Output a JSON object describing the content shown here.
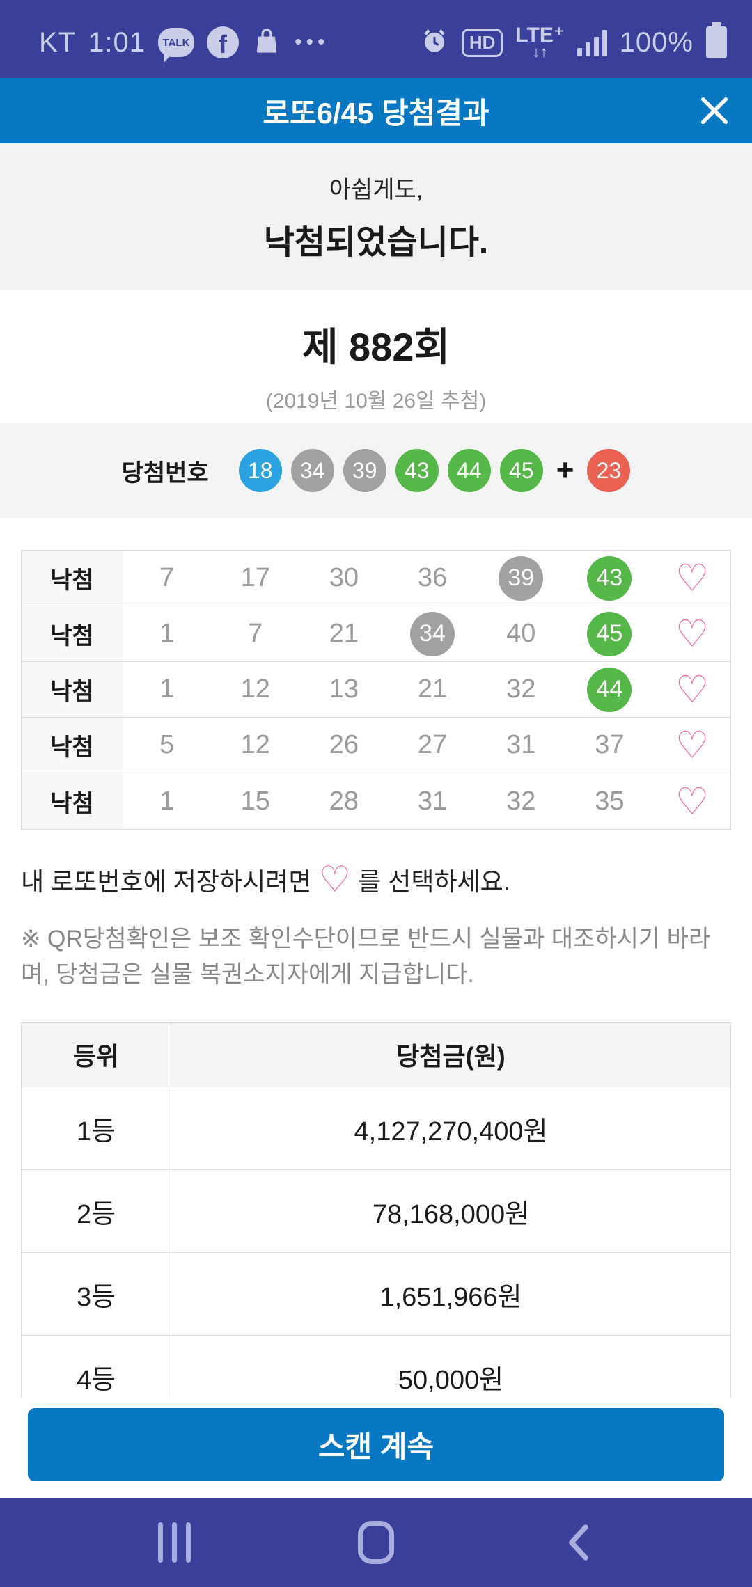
{
  "colors": {
    "system_bar_bg": "#3A3F9A",
    "system_bar_fg": "#C9CDE8",
    "header_bg": "#0878C2",
    "banner_bg": "#F2F2F2",
    "box_bg": "#F4F4F4",
    "ball_blue": "#2BA3E1",
    "ball_gray": "#A1A1A1",
    "ball_green": "#55B748",
    "ball_red": "#EA6352",
    "number_gray": "#9B9B9B",
    "heart_pink": "#F2729B"
  },
  "status_bar": {
    "carrier": "KT",
    "time": "1:01",
    "kakaotalk_label": "TALK",
    "facebook_label": "f",
    "more_dots": "•••",
    "hd_label": "HD",
    "lte_label": "LTE⁺",
    "lte_arrows": "↓↑",
    "battery_percent": "100%"
  },
  "header": {
    "title": "로또6/45 당첨결과"
  },
  "banner": {
    "line1": "아쉽게도,",
    "line2": "낙첨되었습니다."
  },
  "round": {
    "title": "제 882회",
    "date": "(2019년 10월 26일 추첨)"
  },
  "winning": {
    "label": "당첨번호",
    "balls": [
      {
        "value": "18",
        "color": "blue"
      },
      {
        "value": "34",
        "color": "gray"
      },
      {
        "value": "39",
        "color": "gray"
      },
      {
        "value": "43",
        "color": "green"
      },
      {
        "value": "44",
        "color": "green"
      },
      {
        "value": "45",
        "color": "green"
      }
    ],
    "plus": "+",
    "bonus": {
      "value": "23",
      "color": "red"
    }
  },
  "my_games": {
    "status_label": "낙첨",
    "heart": "♡",
    "rows": [
      {
        "numbers": [
          {
            "v": "7"
          },
          {
            "v": "17"
          },
          {
            "v": "30"
          },
          {
            "v": "36"
          },
          {
            "v": "39",
            "ball": "gray"
          },
          {
            "v": "43",
            "ball": "green"
          }
        ]
      },
      {
        "numbers": [
          {
            "v": "1"
          },
          {
            "v": "7"
          },
          {
            "v": "21"
          },
          {
            "v": "34",
            "ball": "gray"
          },
          {
            "v": "40"
          },
          {
            "v": "45",
            "ball": "green"
          }
        ]
      },
      {
        "numbers": [
          {
            "v": "1"
          },
          {
            "v": "12"
          },
          {
            "v": "13"
          },
          {
            "v": "21"
          },
          {
            "v": "32"
          },
          {
            "v": "44",
            "ball": "green"
          }
        ]
      },
      {
        "numbers": [
          {
            "v": "5"
          },
          {
            "v": "12"
          },
          {
            "v": "26"
          },
          {
            "v": "27"
          },
          {
            "v": "31"
          },
          {
            "v": "37"
          }
        ]
      },
      {
        "numbers": [
          {
            "v": "1"
          },
          {
            "v": "15"
          },
          {
            "v": "28"
          },
          {
            "v": "31"
          },
          {
            "v": "32"
          },
          {
            "v": "35"
          }
        ]
      }
    ]
  },
  "save_hint": {
    "before": "내 로또번호에 저장하시려면",
    "heart": "♡",
    "after": "를 선택하세요."
  },
  "notice": "※ QR당첨확인은 보조 확인수단이므로 반드시 실물과 대조하시기 바라며, 당첨금은 실물 복권소지자에게 지급합니다.",
  "prize_table": {
    "rank_header": "등위",
    "amount_header": "당첨금(원)",
    "rows": [
      {
        "rank": "1등",
        "amount": "4,127,270,400원"
      },
      {
        "rank": "2등",
        "amount": "78,168,000원"
      },
      {
        "rank": "3등",
        "amount": "1,651,966원"
      },
      {
        "rank": "4등",
        "amount": "50,000원"
      }
    ]
  },
  "scan_button_label": "스캔 계속"
}
